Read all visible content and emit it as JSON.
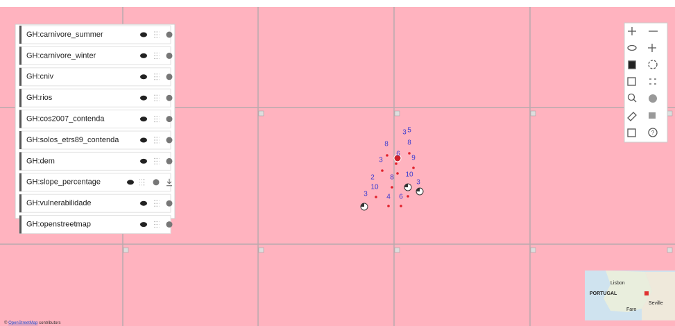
{
  "layers": [
    {
      "name": "GH:carnivore_summer"
    },
    {
      "name": "GH:carnivore_winter"
    },
    {
      "name": "GH:cniv"
    },
    {
      "name": "GH:rios"
    },
    {
      "name": "GH:cos2007_contenda"
    },
    {
      "name": "GH:solos_etrs89_contenda"
    },
    {
      "name": "GH:dem"
    },
    {
      "name": "GH:slope_percentage"
    },
    {
      "name": "GH:vulnerabilidade"
    },
    {
      "name": "GH:openstreetmap"
    }
  ],
  "map": {
    "cluster_labels": [
      "3",
      "5",
      "8",
      "8",
      "3",
      "6",
      "9",
      "2",
      "8",
      "10",
      "10",
      "3",
      "3",
      "4",
      "6"
    ]
  },
  "minimap": {
    "labels": [
      "Lisbon",
      "PORTUGAL",
      "Faro",
      "Seville"
    ]
  },
  "attribution": {
    "prefix": "©",
    "link": "OpenStreetMap",
    "suffix": "contributors"
  }
}
